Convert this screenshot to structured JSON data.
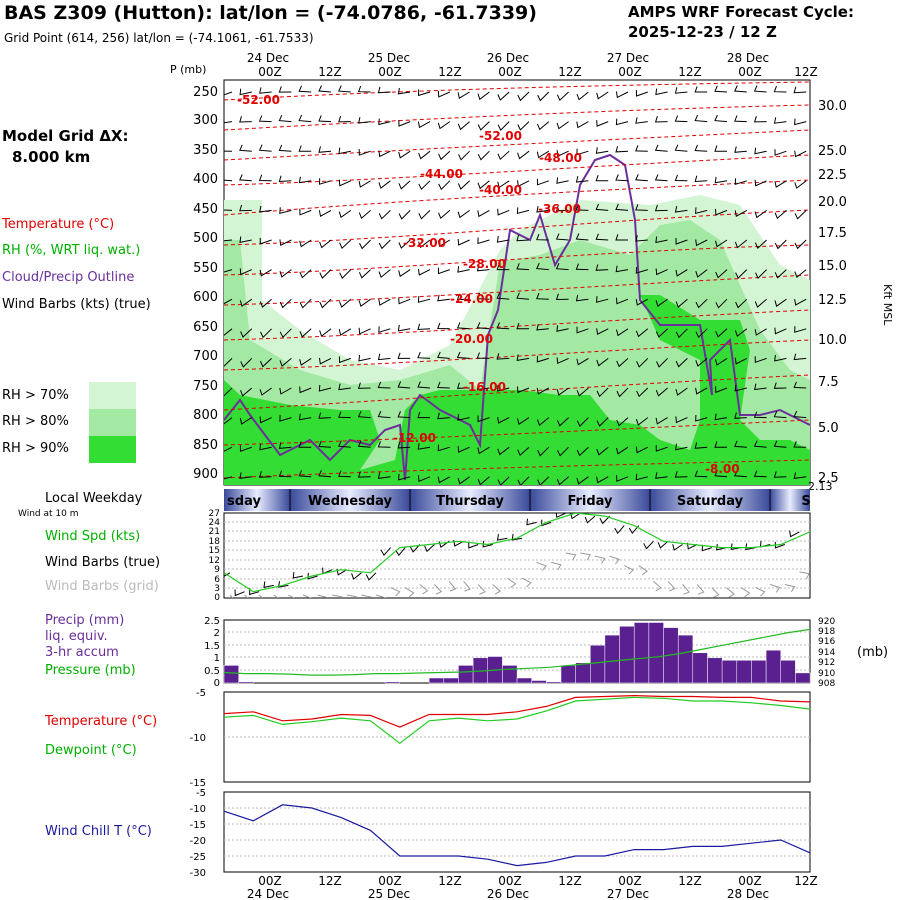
{
  "header": {
    "title": "BAS Z309 (Hutton):  lat/lon = (-74.0786, -61.7339)",
    "subtitle": "Grid Point (614, 256) lat/lon = (-74.1061, -61.7533)",
    "cycle_line1": "AMPS WRF Forecast Cycle:",
    "cycle_line2": "2025-12-23 / 12  Z"
  },
  "left_panel": {
    "model_grid_label": "Model Grid ΔX:",
    "model_grid_value": "8.000 km",
    "legend_temperature": "Temperature (°C)",
    "legend_rh": "RH (%, WRT liq. wat.)",
    "legend_cloud": "Cloud/Precip Outline",
    "legend_wind": "Wind Barbs (kts) (true)",
    "rh_70": "RH > 70%",
    "rh_80": "RH > 80%",
    "rh_90": "RH > 90%",
    "local_weekday": "Local Weekday",
    "wind_at": "Wind at 10 m",
    "wind_spd": "Wind Spd (kts)",
    "wind_barbs_true": "Wind Barbs (true)",
    "wind_barbs_grid": "Wind Barbs (grid)",
    "precip_1": "Precip (mm)",
    "precip_2": "liq. equiv.",
    "precip_3": "3-hr accum",
    "pressure": "Pressure (mb)",
    "temperature": "Temperature (°C)",
    "dewpoint": "Dewpoint (°C)",
    "windchill": "Wind Chill T (°C)"
  },
  "colors": {
    "rh70": "#d4f5d4",
    "rh80": "#a3e8a3",
    "rh90": "#33dd33",
    "temperature": "#e00000",
    "dewpoint": "#22cc22",
    "cloud": "#6a2f9a",
    "precip": "#5a2090",
    "windchill": "#1a1aa0",
    "pressure": "#22bb22",
    "weekday_band": "#3a4a9a"
  },
  "chart_data": [
    {
      "type": "heatmap",
      "title": "Vertical cross-section (time-height)",
      "y_axis_title": "P (mb)",
      "y_ticks_pressure": [
        "250",
        "300",
        "350",
        "400",
        "450",
        "500",
        "550",
        "600",
        "650",
        "700",
        "750",
        "800",
        "850",
        "900"
      ],
      "y_right_title": "Kft MSL",
      "y_right_ticks": [
        "30.0",
        "25.0",
        "22.5",
        "20.0",
        "17.5",
        "15.0",
        "12.5",
        "10.0",
        "7.5",
        "5.0",
        "2.5",
        "2.13"
      ],
      "x_top_ticks": [
        "00Z",
        "12Z",
        "00Z",
        "12Z",
        "00Z",
        "12Z",
        "00Z",
        "12Z",
        "00Z",
        "12Z"
      ],
      "x_top_days": [
        "24 Dec",
        "25 Dec",
        "26 Dec",
        "27 Dec",
        "28 Dec"
      ],
      "temperature_contours_labels": [
        "-52.00",
        "-52.00",
        "-48.00",
        "-44.00",
        "-40.00",
        "-36.00",
        "-32.00",
        "-28.00",
        "-24.00",
        "-20.00",
        "-16.00",
        "-12.00",
        "-8.00"
      ]
    },
    {
      "type": "table",
      "title": "Local Weekday",
      "days": [
        "sday",
        "Wednesday",
        "Thursday",
        "Friday",
        "Saturday",
        "S"
      ]
    },
    {
      "type": "line",
      "title": "Wind Spd (kts)",
      "y_ticks": [
        "27",
        "24",
        "21",
        "18",
        "15",
        "12",
        "9",
        "6",
        "3",
        "0"
      ],
      "x_hours": [
        0,
        6,
        12,
        18,
        24,
        30,
        36,
        42,
        48,
        54,
        60,
        66,
        72,
        78,
        84,
        90,
        96,
        102,
        108,
        114,
        120
      ],
      "wind_speed": [
        8,
        2,
        4,
        7,
        9,
        8,
        16,
        17,
        18,
        17,
        19,
        24,
        27,
        26,
        23,
        18,
        17,
        16,
        16,
        17,
        21
      ]
    },
    {
      "type": "bar",
      "title": "Precip (mm) liq. equiv. 3-hr accum",
      "ylim": [
        0,
        2.5
      ],
      "y_ticks": [
        "2.5",
        "2",
        "1.5",
        "1",
        "0.5",
        "0"
      ],
      "right_y_ticks": [
        "920",
        "918",
        "916",
        "914",
        "912",
        "910",
        "908"
      ],
      "right_unit": "(mb)",
      "precip": [
        0.7,
        0.05,
        0,
        0,
        0,
        0,
        0,
        0,
        0,
        0,
        0,
        0.05,
        0,
        0,
        0.2,
        0.2,
        0.7,
        1.0,
        1.05,
        0.7,
        0.2,
        0.1,
        0.05,
        0.7,
        0.8,
        1.5,
        1.9,
        2.25,
        2.4,
        2.4,
        2.2,
        1.9,
        1.2,
        1.0,
        0.9,
        0.9,
        0.9,
        1.3,
        0.9,
        0.4
      ],
      "pressure": [
        910,
        909.8,
        909.8,
        909.7,
        909.5,
        909.5,
        909.6,
        909.8,
        909.8,
        909.9,
        910.0,
        910.1,
        910.3,
        910.6,
        910.8,
        911,
        911.4,
        911.8,
        912.2,
        912.6,
        913.0,
        913.6,
        914.4,
        915.2,
        916.0,
        916.8,
        917.6,
        918.2
      ]
    },
    {
      "type": "line",
      "title": "Temperature / Dewpoint (°C)",
      "ylim": [
        -15,
        -5
      ],
      "y_ticks": [
        "-5",
        "-10",
        "-15"
      ],
      "series": [
        {
          "name": "Temperature (°C)",
          "values": [
            -7.4,
            -7.2,
            -8.2,
            -8.0,
            -7.5,
            -7.6,
            -8.9,
            -7.5,
            -7.5,
            -7.5,
            -7.2,
            -6.6,
            -5.6,
            -5.5,
            -5.4,
            -5.5,
            -5.5,
            -5.6,
            -5.6,
            -6.0,
            -6.1
          ]
        },
        {
          "name": "Dewpoint (°C)",
          "values": [
            -7.8,
            -7.6,
            -8.6,
            -8.3,
            -7.9,
            -8.2,
            -10.7,
            -8.2,
            -7.9,
            -8.2,
            -8.0,
            -7.1,
            -6.0,
            -5.8,
            -5.6,
            -5.7,
            -6.0,
            -6.0,
            -6.2,
            -6.5,
            -6.9
          ]
        }
      ]
    },
    {
      "type": "line",
      "title": "Wind Chill T (°C)",
      "ylim": [
        -30,
        -5
      ],
      "y_ticks": [
        "-5",
        "-10",
        "-15",
        "-20",
        "-25",
        "-30"
      ],
      "series": [
        {
          "name": "Wind Chill T (°C)",
          "values": [
            -11,
            -14,
            -9,
            -10,
            -13,
            -17,
            -25,
            -25,
            -25,
            -26,
            -28,
            -27,
            -25,
            -25,
            -23,
            -23,
            -22,
            -22,
            -21,
            -20,
            -24
          ]
        }
      ],
      "x_bottom_ticks": [
        "00Z",
        "12Z",
        "00Z",
        "12Z",
        "00Z",
        "12Z",
        "00Z",
        "12Z",
        "00Z",
        "12Z"
      ],
      "x_bottom_days": [
        "24 Dec",
        "25 Dec",
        "26 Dec",
        "27 Dec",
        "28 Dec"
      ]
    }
  ]
}
